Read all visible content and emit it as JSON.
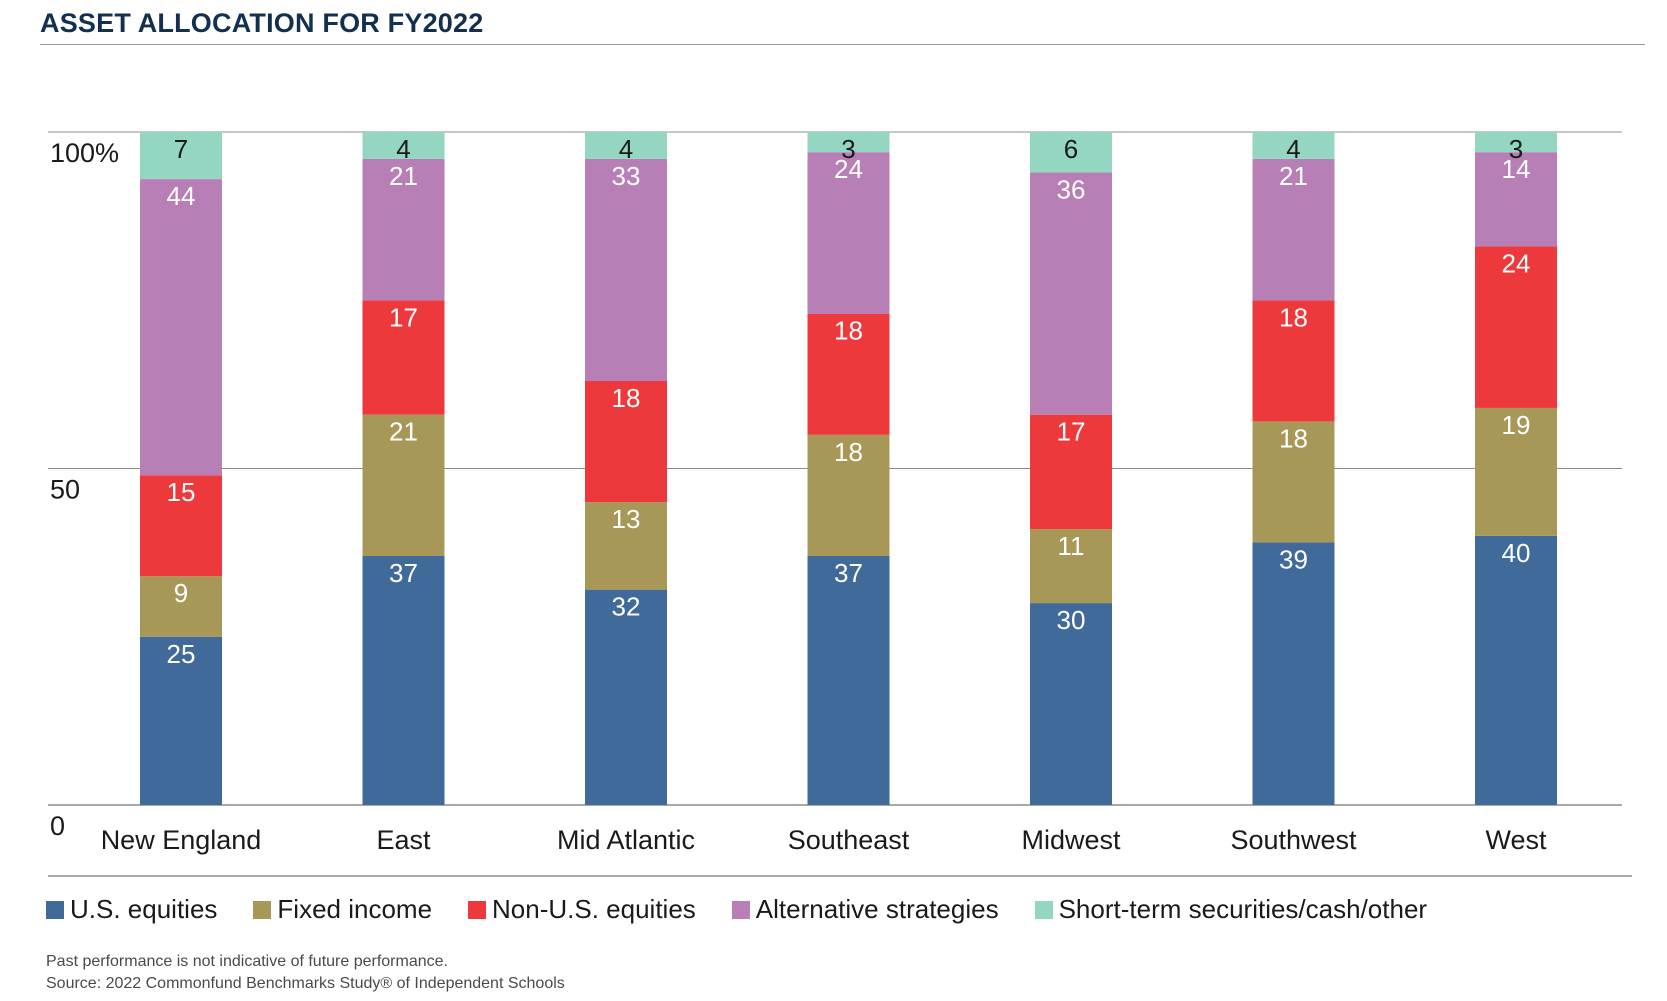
{
  "title": "ASSET ALLOCATION FOR FY2022",
  "chart_data": {
    "type": "bar",
    "stacked": true,
    "categories": [
      "New England",
      "East",
      "Mid Atlantic",
      "Southeast",
      "Midwest",
      "Southwest",
      "West"
    ],
    "series": [
      {
        "name": "U.S. equities",
        "color": "#3f6a99",
        "values": [
          25,
          37,
          32,
          37,
          30,
          39,
          40
        ]
      },
      {
        "name": "Fixed income",
        "color": "#a89858",
        "values": [
          9,
          21,
          13,
          18,
          11,
          18,
          19
        ]
      },
      {
        "name": "Non-U.S. equities",
        "color": "#ee393c",
        "values": [
          15,
          17,
          18,
          18,
          17,
          18,
          24
        ]
      },
      {
        "name": "Alternative strategies",
        "color": "#b77fb5",
        "values": [
          44,
          21,
          33,
          24,
          36,
          21,
          14
        ]
      },
      {
        "name": "Short-term securities/cash/other",
        "color": "#95d6c3",
        "values": [
          7,
          4,
          4,
          3,
          6,
          4,
          3
        ]
      }
    ],
    "y_ticks": [
      {
        "value": 0,
        "label": "0"
      },
      {
        "value": 50,
        "label": "50"
      },
      {
        "value": 100,
        "label": "100%"
      }
    ],
    "ylim": [
      0,
      100
    ],
    "xlabel": "",
    "ylabel": "",
    "legend_position": "bottom"
  },
  "footnotes": {
    "disclaimer": "Past performance is not indicative of future performance.",
    "source": "Source: 2022 Commonfund Benchmarks Study® of Independent Schools"
  }
}
